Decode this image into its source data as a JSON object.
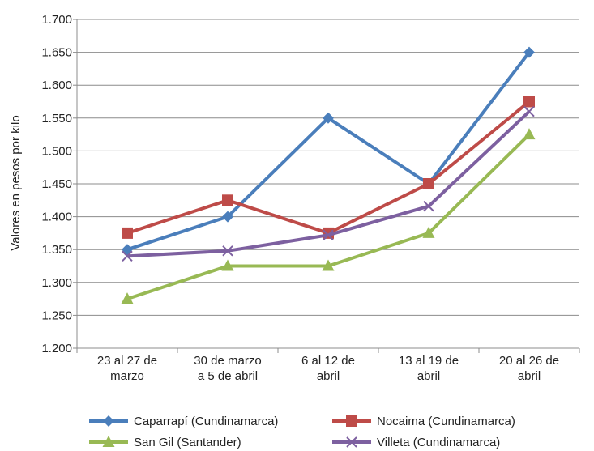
{
  "chart_data": {
    "type": "line",
    "title": "",
    "xlabel": "",
    "ylabel": "Valores en pesos por kilo",
    "ylim": [
      1200,
      1700
    ],
    "ytick_step": 50,
    "ytick_labels": [
      "1.200",
      "1.250",
      "1.300",
      "1.350",
      "1.400",
      "1.450",
      "1.500",
      "1.550",
      "1.600",
      "1.650",
      "1.700"
    ],
    "grid": "horizontal",
    "legend_position": "bottom",
    "categories": [
      [
        "23 al 27 de",
        "marzo"
      ],
      [
        "30 de marzo",
        "a 5 de abril"
      ],
      [
        "6 al 12 de",
        "abril"
      ],
      [
        "13 al 19 de",
        "abril"
      ],
      [
        "20 al 26 de",
        "abril"
      ]
    ],
    "series": [
      {
        "name": "Caparrapí (Cundinamarca)",
        "color": "#4a7ebb",
        "marker": "diamond",
        "values": [
          1350,
          1400,
          1550,
          1450,
          1650
        ]
      },
      {
        "name": "Nocaima (Cundinamarca)",
        "color": "#be4b48",
        "marker": "square",
        "values": [
          1375,
          1425,
          1375,
          1450,
          1575
        ]
      },
      {
        "name": "San Gil (Santander)",
        "color": "#98b954",
        "marker": "triangle",
        "values": [
          1275,
          1325,
          1325,
          1375,
          1525
        ]
      },
      {
        "name": "Villeta (Cundinamarca)",
        "color": "#7d60a0",
        "marker": "x",
        "values": [
          1340,
          1348,
          1372,
          1416,
          1560
        ]
      }
    ]
  }
}
